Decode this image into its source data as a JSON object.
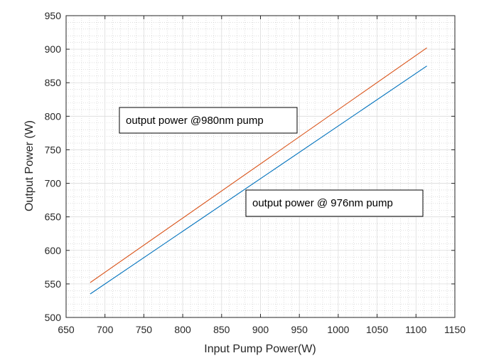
{
  "chart_data": {
    "type": "line",
    "title": "",
    "xlabel": "Input Pump Power(W)",
    "ylabel": "Output Power (W)",
    "xlim": [
      650,
      1150
    ],
    "ylim": [
      500,
      950
    ],
    "xticks": [
      650,
      700,
      750,
      800,
      850,
      900,
      950,
      1000,
      1050,
      1100,
      1150
    ],
    "yticks": [
      500,
      550,
      600,
      650,
      700,
      750,
      800,
      850,
      900,
      950
    ],
    "grid": true,
    "minor_grid": true,
    "series": [
      {
        "color": "#D95319",
        "x": [
          681,
          1114
        ],
        "y": [
          552,
          902
        ]
      },
      {
        "color": "#0072BD",
        "x": [
          681,
          1114
        ],
        "y": [
          535,
          875
        ]
      }
    ],
    "annotations": [
      {
        "text": "output power @980nm pump"
      },
      {
        "text": "output power @ 976nm pump"
      }
    ]
  }
}
